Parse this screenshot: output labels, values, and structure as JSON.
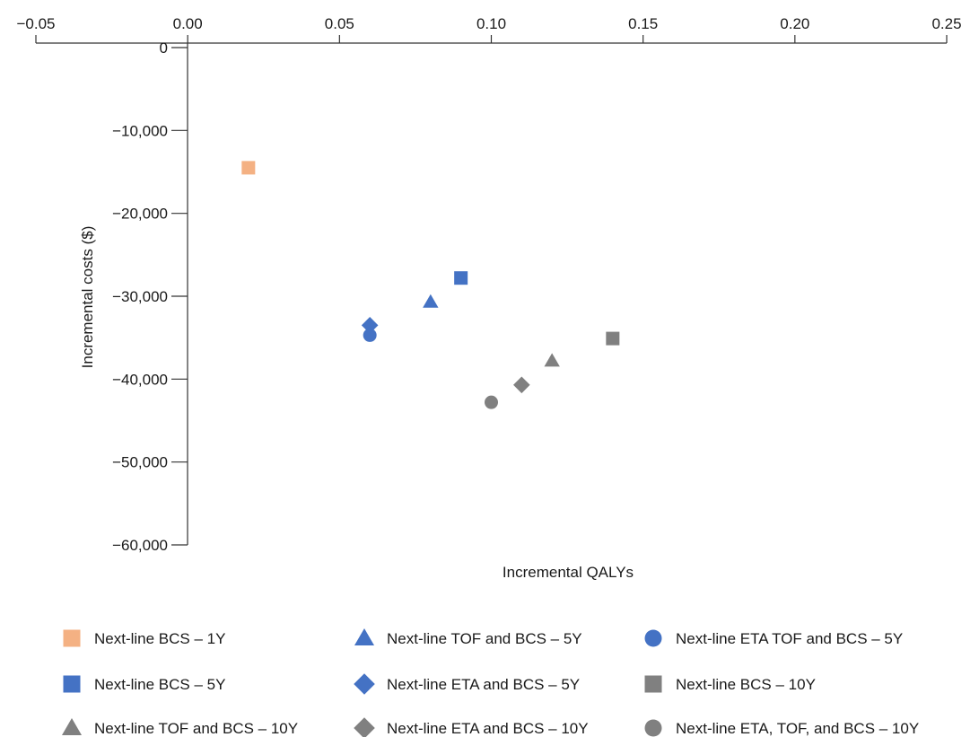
{
  "chart_data": {
    "type": "scatter",
    "title": "",
    "xlabel": "Incremental QALYs",
    "ylabel": "Incremental costs ($)",
    "xlim": [
      -0.05,
      0.25
    ],
    "ylim": [
      -60000,
      0
    ],
    "x_ticks": [
      -0.05,
      0.0,
      0.05,
      0.1,
      0.15,
      0.2,
      0.25
    ],
    "x_tick_labels": [
      "−0.05",
      "0.00",
      "0.05",
      "0.10",
      "0.15",
      "0.20",
      "0.25"
    ],
    "y_ticks": [
      0,
      -10000,
      -20000,
      -30000,
      -40000,
      -50000,
      -60000
    ],
    "y_tick_labels": [
      "0",
      "−10,000",
      "−20,000",
      "−30,000",
      "−40,000",
      "−50,000",
      "−60,000"
    ],
    "x_axis_position": "top",
    "grid": false,
    "legend_position": "bottom",
    "series": [
      {
        "name": "Next-line BCS – 1Y",
        "marker": "square",
        "color": "#f4b183",
        "x": 0.02,
        "y": -14500
      },
      {
        "name": "Next-line TOF and BCS – 5Y",
        "marker": "triangle",
        "color": "#4472c4",
        "x": 0.08,
        "y": -30700
      },
      {
        "name": "Next-line ETA TOF and BCS – 5Y",
        "marker": "circle",
        "color": "#4472c4",
        "x": 0.06,
        "y": -34700
      },
      {
        "name": "Next-line BCS – 5Y",
        "marker": "square",
        "color": "#4472c4",
        "x": 0.09,
        "y": -27800
      },
      {
        "name": "Next-line ETA and BCS – 5Y",
        "marker": "diamond",
        "color": "#4472c4",
        "x": 0.06,
        "y": -33500
      },
      {
        "name": "Next-line BCS – 10Y",
        "marker": "square",
        "color": "#808080",
        "x": 0.14,
        "y": -35100
      },
      {
        "name": "Next-line TOF and BCS – 10Y",
        "marker": "triangle",
        "color": "#808080",
        "x": 0.12,
        "y": -37800
      },
      {
        "name": "Next-line ETA and BCS – 10Y",
        "marker": "diamond",
        "color": "#808080",
        "x": 0.11,
        "y": -40700
      },
      {
        "name": "Next-line ETA, TOF, and BCS – 10Y",
        "marker": "circle",
        "color": "#808080",
        "x": 0.1,
        "y": -42800
      }
    ]
  }
}
